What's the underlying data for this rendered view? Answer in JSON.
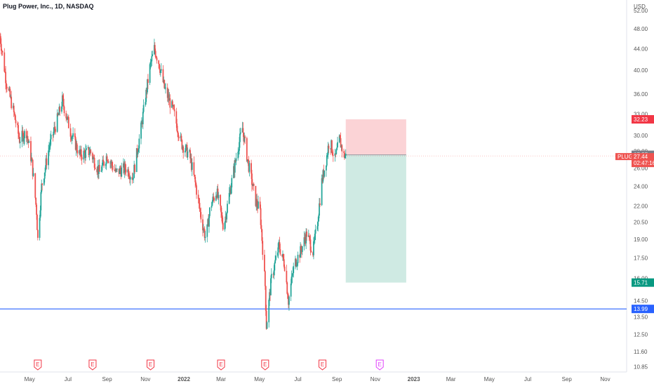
{
  "header": {
    "title": "Plug Power, Inc., 1D, NASDAQ",
    "currency": "USD"
  },
  "colors": {
    "up": "#26a69a",
    "down": "#ef5350",
    "stop_zone": "#fbd3d6",
    "target_zone": "#cfeae3",
    "support_line": "#2962ff",
    "ticker_badge": "#ef5350",
    "entry_badge": "#787b86",
    "stop_badge": "#f23645",
    "target_badge": "#089981",
    "support_badge": "#2962ff",
    "earnings_past": "#f23645",
    "earnings_future": "#e040fb"
  },
  "axis": {
    "price_ticks": [
      "52.00",
      "48.00",
      "44.00",
      "40.00",
      "36.00",
      "33.00",
      "30.00",
      "28.00",
      "26.00",
      "24.00",
      "22.00",
      "20.50",
      "19.00",
      "17.50",
      "16.00",
      "14.50",
      "13.50",
      "12.50",
      "11.60",
      "10.85"
    ],
    "time_labels": [
      "May",
      "Jul",
      "Sep",
      "Nov",
      "2022",
      "Mar",
      "May",
      "Jul",
      "Sep",
      "Nov",
      "2023",
      "Mar",
      "May",
      "Jul",
      "Sep",
      "Nov"
    ]
  },
  "price_labels": {
    "stop": "32.23",
    "entry": "27.57",
    "ticker": "PLUG",
    "last": "27.44",
    "countdown": "02:47:16",
    "target": "15.71",
    "support": "13.99"
  },
  "earnings": {
    "marker": "E"
  },
  "chart_data": {
    "type": "candlestick",
    "title": "Plug Power, Inc., 1D, NASDAQ",
    "scale": "log",
    "y_unit": "USD",
    "ylim": [
      10.6,
      54.5
    ],
    "x_range": [
      "2021-03-15",
      "2023-12-05"
    ],
    "last_price": 27.44,
    "price_path": [
      [
        "2021-03-15",
        46.5
      ],
      [
        "2021-03-25",
        38.0
      ],
      [
        "2021-04-05",
        33.5
      ],
      [
        "2021-04-15",
        29.5
      ],
      [
        "2021-04-26",
        30.5
      ],
      [
        "2021-05-05",
        26.5
      ],
      [
        "2021-05-12",
        21.5
      ],
      [
        "2021-05-14",
        19.0
      ],
      [
        "2021-05-20",
        24.0
      ],
      [
        "2021-06-01",
        28.5
      ],
      [
        "2021-06-15",
        32.5
      ],
      [
        "2021-06-22",
        35.0
      ],
      [
        "2021-07-05",
        30.5
      ],
      [
        "2021-07-20",
        27.5
      ],
      [
        "2021-08-05",
        28.0
      ],
      [
        "2021-08-20",
        25.5
      ],
      [
        "2021-09-01",
        27.5
      ],
      [
        "2021-09-15",
        25.5
      ],
      [
        "2021-10-01",
        26.0
      ],
      [
        "2021-10-12",
        25.0
      ],
      [
        "2021-10-25",
        31.0
      ],
      [
        "2021-11-08",
        40.5
      ],
      [
        "2021-11-15",
        44.0
      ],
      [
        "2021-11-22",
        41.5
      ],
      [
        "2021-12-01",
        37.0
      ],
      [
        "2021-12-15",
        33.5
      ],
      [
        "2021-12-28",
        29.0
      ],
      [
        "2022-01-10",
        27.5
      ],
      [
        "2022-01-20",
        24.0
      ],
      [
        "2022-01-28",
        21.0
      ],
      [
        "2022-02-05",
        19.0
      ],
      [
        "2022-02-12",
        22.0
      ],
      [
        "2022-02-22",
        23.5
      ],
      [
        "2022-03-05",
        20.0
      ],
      [
        "2022-03-15",
        23.5
      ],
      [
        "2022-03-28",
        28.5
      ],
      [
        "2022-04-04",
        31.0
      ],
      [
        "2022-04-12",
        27.0
      ],
      [
        "2022-04-25",
        22.5
      ],
      [
        "2022-05-02",
        21.5
      ],
      [
        "2022-05-10",
        15.5
      ],
      [
        "2022-05-12",
        13.0
      ],
      [
        "2022-05-20",
        16.0
      ],
      [
        "2022-06-01",
        18.5
      ],
      [
        "2022-06-10",
        17.0
      ],
      [
        "2022-06-16",
        14.5
      ],
      [
        "2022-06-25",
        17.0
      ],
      [
        "2022-07-05",
        18.0
      ],
      [
        "2022-07-15",
        19.5
      ],
      [
        "2022-07-25",
        18.0
      ],
      [
        "2022-08-01",
        20.5
      ],
      [
        "2022-08-08",
        24.5
      ],
      [
        "2022-08-15",
        27.0
      ],
      [
        "2022-08-20",
        29.5
      ],
      [
        "2022-08-29",
        27.0
      ],
      [
        "2022-09-05",
        29.5
      ],
      [
        "2022-09-12",
        27.5
      ],
      [
        "2022-09-15",
        27.44
      ]
    ],
    "trade_setup": {
      "entry": 27.57,
      "stop": 32.23,
      "target": 15.71,
      "start_date": "2022-09-15",
      "end_date": "2022-12-20"
    },
    "support_level": 13.99,
    "earnings_dates": [
      "2021-05-14",
      "2021-08-09",
      "2021-11-09",
      "2022-03-01",
      "2022-05-10",
      "2022-08-09",
      "2022-11-08"
    ]
  }
}
